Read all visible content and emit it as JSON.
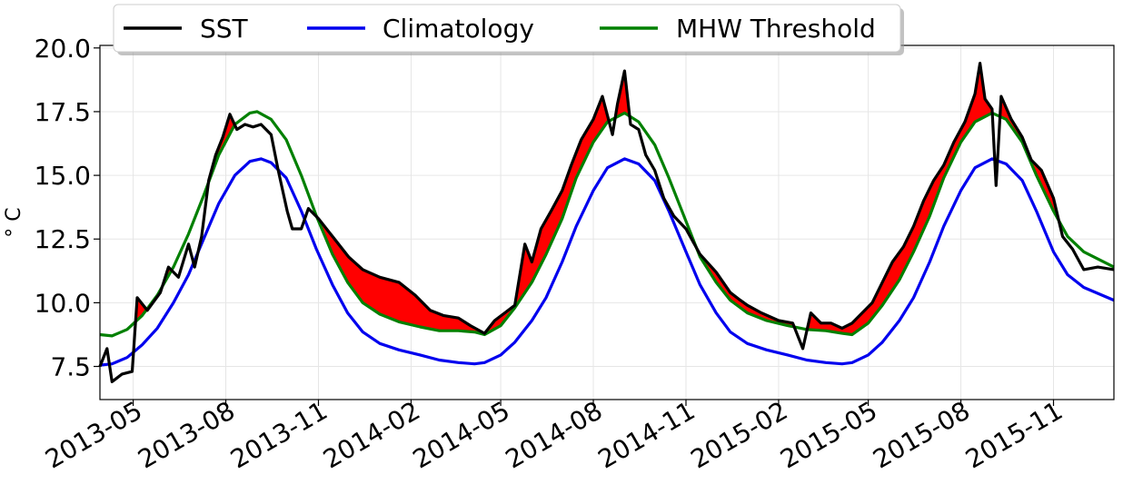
{
  "chart_data": {
    "type": "line",
    "ylabel": "$^\\circ$C",
    "ylabel_display": "° C",
    "ylim": [
      6.2,
      20.1
    ],
    "xlim": [
      "2013-03-29",
      "2015-12-31"
    ],
    "y_ticks": [
      "7.5",
      "10.0",
      "12.5",
      "15.0",
      "17.5",
      "20.0"
    ],
    "x_ticks": [
      "2013-05",
      "2013-08",
      "2013-11",
      "2014-02",
      "2014-05",
      "2014-08",
      "2014-11",
      "2015-02",
      "2015-05",
      "2015-08",
      "2015-11"
    ],
    "grid": true,
    "legend": {
      "placement": "top-center",
      "entries": [
        "SST",
        "Climatology",
        "MHW Threshold"
      ]
    },
    "series": [
      {
        "name": "SST",
        "color": "#000000",
        "points": [
          [
            "2013-03-29",
            7.5
          ],
          [
            "2013-04-05",
            8.2
          ],
          [
            "2013-04-10",
            6.9
          ],
          [
            "2013-04-20",
            7.2
          ],
          [
            "2013-04-30",
            7.3
          ],
          [
            "2013-05-05",
            10.2
          ],
          [
            "2013-05-15",
            9.7
          ],
          [
            "2013-05-28",
            10.4
          ],
          [
            "2013-06-05",
            11.4
          ],
          [
            "2013-06-15",
            11.0
          ],
          [
            "2013-06-25",
            12.3
          ],
          [
            "2013-07-01",
            11.4
          ],
          [
            "2013-07-08",
            12.6
          ],
          [
            "2013-07-15",
            14.8
          ],
          [
            "2013-07-22",
            15.8
          ],
          [
            "2013-07-29",
            16.5
          ],
          [
            "2013-08-05",
            17.4
          ],
          [
            "2013-08-12",
            16.8
          ],
          [
            "2013-08-20",
            17.0
          ],
          [
            "2013-08-28",
            16.9
          ],
          [
            "2013-09-05",
            17.0
          ],
          [
            "2013-09-15",
            16.6
          ],
          [
            "2013-09-22",
            15.2
          ],
          [
            "2013-10-01",
            13.6
          ],
          [
            "2013-10-06",
            12.9
          ],
          [
            "2013-10-15",
            12.9
          ],
          [
            "2013-10-22",
            13.7
          ],
          [
            "2013-11-01",
            13.3
          ],
          [
            "2013-11-15",
            12.6
          ],
          [
            "2013-12-01",
            11.8
          ],
          [
            "2013-12-15",
            11.3
          ],
          [
            "2014-01-01",
            11.0
          ],
          [
            "2014-01-20",
            10.8
          ],
          [
            "2014-02-05",
            10.3
          ],
          [
            "2014-02-20",
            9.7
          ],
          [
            "2014-03-05",
            9.5
          ],
          [
            "2014-03-20",
            9.4
          ],
          [
            "2014-04-01",
            9.1
          ],
          [
            "2014-04-15",
            8.8
          ],
          [
            "2014-04-25",
            9.3
          ],
          [
            "2014-05-05",
            9.6
          ],
          [
            "2014-05-15",
            9.9
          ],
          [
            "2014-05-25",
            12.3
          ],
          [
            "2014-06-01",
            11.6
          ],
          [
            "2014-06-10",
            12.9
          ],
          [
            "2014-06-20",
            13.6
          ],
          [
            "2014-07-01",
            14.4
          ],
          [
            "2014-07-10",
            15.4
          ],
          [
            "2014-07-20",
            16.4
          ],
          [
            "2014-08-01",
            17.2
          ],
          [
            "2014-08-10",
            18.1
          ],
          [
            "2014-08-20",
            16.6
          ],
          [
            "2014-08-25",
            17.8
          ],
          [
            "2014-09-01",
            19.1
          ],
          [
            "2014-09-07",
            17.0
          ],
          [
            "2014-09-15",
            16.8
          ],
          [
            "2014-09-22",
            15.8
          ],
          [
            "2014-10-01",
            15.2
          ],
          [
            "2014-10-10",
            14.1
          ],
          [
            "2014-10-20",
            13.4
          ],
          [
            "2014-11-01",
            12.9
          ],
          [
            "2014-11-15",
            11.9
          ],
          [
            "2014-12-01",
            11.2
          ],
          [
            "2014-12-15",
            10.4
          ],
          [
            "2014-12-25",
            10.1
          ],
          [
            "2015-01-01",
            9.9
          ],
          [
            "2015-01-15",
            9.6
          ],
          [
            "2015-02-01",
            9.3
          ],
          [
            "2015-02-15",
            9.2
          ],
          [
            "2015-02-25",
            8.2
          ],
          [
            "2015-03-05",
            9.6
          ],
          [
            "2015-03-15",
            9.2
          ],
          [
            "2015-03-25",
            9.2
          ],
          [
            "2015-04-05",
            9.0
          ],
          [
            "2015-04-15",
            9.2
          ],
          [
            "2015-04-25",
            9.6
          ],
          [
            "2015-05-05",
            10.0
          ],
          [
            "2015-05-15",
            10.8
          ],
          [
            "2015-05-25",
            11.6
          ],
          [
            "2015-06-05",
            12.2
          ],
          [
            "2015-06-15",
            13.0
          ],
          [
            "2015-06-25",
            14.0
          ],
          [
            "2015-07-05",
            14.8
          ],
          [
            "2015-07-15",
            15.4
          ],
          [
            "2015-07-25",
            16.3
          ],
          [
            "2015-08-05",
            17.1
          ],
          [
            "2015-08-15",
            18.2
          ],
          [
            "2015-08-20",
            19.4
          ],
          [
            "2015-08-25",
            18.0
          ],
          [
            "2015-09-01",
            17.6
          ],
          [
            "2015-09-05",
            14.6
          ],
          [
            "2015-09-10",
            18.1
          ],
          [
            "2015-09-20",
            17.2
          ],
          [
            "2015-10-01",
            16.5
          ],
          [
            "2015-10-10",
            15.6
          ],
          [
            "2015-10-20",
            15.2
          ],
          [
            "2015-11-01",
            14.1
          ],
          [
            "2015-11-10",
            12.6
          ],
          [
            "2015-11-20",
            12.1
          ],
          [
            "2015-12-01",
            11.3
          ],
          [
            "2015-12-15",
            11.4
          ],
          [
            "2015-12-31",
            11.3
          ]
        ]
      },
      {
        "name": "Climatology",
        "color": "#0000ee",
        "points": [
          [
            "2013-03-29",
            7.55
          ],
          [
            "2013-04-10",
            7.6
          ],
          [
            "2013-04-25",
            7.85
          ],
          [
            "2013-05-10",
            8.35
          ],
          [
            "2013-05-25",
            9.0
          ],
          [
            "2013-06-10",
            10.0
          ],
          [
            "2013-06-25",
            11.1
          ],
          [
            "2013-07-10",
            12.5
          ],
          [
            "2013-07-25",
            13.9
          ],
          [
            "2013-08-10",
            15.0
          ],
          [
            "2013-08-25",
            15.55
          ],
          [
            "2013-09-05",
            15.65
          ],
          [
            "2013-09-15",
            15.5
          ],
          [
            "2013-09-30",
            14.9
          ],
          [
            "2013-10-15",
            13.6
          ],
          [
            "2013-10-30",
            12.1
          ],
          [
            "2013-11-15",
            10.7
          ],
          [
            "2013-11-30",
            9.6
          ],
          [
            "2013-12-15",
            8.85
          ],
          [
            "2014-01-01",
            8.4
          ],
          [
            "2014-01-20",
            8.15
          ],
          [
            "2014-02-10",
            7.95
          ],
          [
            "2014-03-01",
            7.75
          ],
          [
            "2014-03-20",
            7.65
          ],
          [
            "2014-04-05",
            7.6
          ],
          [
            "2014-04-15",
            7.65
          ],
          [
            "2014-05-01",
            7.95
          ],
          [
            "2014-05-15",
            8.45
          ],
          [
            "2014-06-01",
            9.3
          ],
          [
            "2014-06-15",
            10.2
          ],
          [
            "2014-07-01",
            11.6
          ],
          [
            "2014-07-15",
            13.0
          ],
          [
            "2014-08-01",
            14.4
          ],
          [
            "2014-08-15",
            15.3
          ],
          [
            "2014-09-01",
            15.65
          ],
          [
            "2014-09-15",
            15.45
          ],
          [
            "2014-10-01",
            14.8
          ],
          [
            "2014-10-15",
            13.6
          ],
          [
            "2014-11-01",
            12.0
          ],
          [
            "2014-11-15",
            10.7
          ],
          [
            "2014-12-01",
            9.6
          ],
          [
            "2014-12-15",
            8.85
          ],
          [
            "2015-01-01",
            8.4
          ],
          [
            "2015-01-20",
            8.15
          ],
          [
            "2015-02-10",
            7.95
          ],
          [
            "2015-03-01",
            7.75
          ],
          [
            "2015-03-20",
            7.65
          ],
          [
            "2015-04-05",
            7.6
          ],
          [
            "2015-04-15",
            7.65
          ],
          [
            "2015-05-01",
            7.95
          ],
          [
            "2015-05-15",
            8.45
          ],
          [
            "2015-06-01",
            9.3
          ],
          [
            "2015-06-15",
            10.2
          ],
          [
            "2015-07-01",
            11.6
          ],
          [
            "2015-07-15",
            13.0
          ],
          [
            "2015-08-01",
            14.4
          ],
          [
            "2015-08-15",
            15.3
          ],
          [
            "2015-09-01",
            15.65
          ],
          [
            "2015-09-15",
            15.45
          ],
          [
            "2015-10-01",
            14.8
          ],
          [
            "2015-10-15",
            13.6
          ],
          [
            "2015-11-01",
            12.0
          ],
          [
            "2015-11-15",
            11.1
          ],
          [
            "2015-12-01",
            10.6
          ],
          [
            "2015-12-31",
            10.1
          ]
        ]
      },
      {
        "name": "MHW Threshold",
        "color": "#008000",
        "points": [
          [
            "2013-03-29",
            8.75
          ],
          [
            "2013-04-10",
            8.7
          ],
          [
            "2013-04-25",
            8.95
          ],
          [
            "2013-05-10",
            9.5
          ],
          [
            "2013-05-25",
            10.3
          ],
          [
            "2013-06-10",
            11.4
          ],
          [
            "2013-06-25",
            12.7
          ],
          [
            "2013-07-10",
            14.2
          ],
          [
            "2013-07-25",
            15.8
          ],
          [
            "2013-08-10",
            17.0
          ],
          [
            "2013-08-25",
            17.45
          ],
          [
            "2013-09-01",
            17.5
          ],
          [
            "2013-09-15",
            17.2
          ],
          [
            "2013-09-30",
            16.4
          ],
          [
            "2013-10-15",
            15.0
          ],
          [
            "2013-10-30",
            13.4
          ],
          [
            "2013-11-15",
            11.9
          ],
          [
            "2013-11-30",
            10.8
          ],
          [
            "2013-12-15",
            10.0
          ],
          [
            "2014-01-01",
            9.55
          ],
          [
            "2014-01-20",
            9.25
          ],
          [
            "2014-02-10",
            9.05
          ],
          [
            "2014-03-01",
            8.9
          ],
          [
            "2014-03-20",
            8.9
          ],
          [
            "2014-04-05",
            8.85
          ],
          [
            "2014-04-15",
            8.75
          ],
          [
            "2014-05-01",
            9.1
          ],
          [
            "2014-05-15",
            9.8
          ],
          [
            "2014-06-01",
            10.8
          ],
          [
            "2014-06-15",
            11.9
          ],
          [
            "2014-07-01",
            13.3
          ],
          [
            "2014-07-15",
            14.9
          ],
          [
            "2014-08-01",
            16.3
          ],
          [
            "2014-08-15",
            17.1
          ],
          [
            "2014-09-01",
            17.45
          ],
          [
            "2014-09-15",
            17.1
          ],
          [
            "2014-10-01",
            16.2
          ],
          [
            "2014-10-15",
            14.9
          ],
          [
            "2014-11-01",
            13.2
          ],
          [
            "2014-11-15",
            11.8
          ],
          [
            "2014-12-01",
            10.8
          ],
          [
            "2014-12-15",
            10.1
          ],
          [
            "2015-01-01",
            9.6
          ],
          [
            "2015-01-20",
            9.3
          ],
          [
            "2015-02-10",
            9.1
          ],
          [
            "2015-03-01",
            8.95
          ],
          [
            "2015-03-20",
            8.9
          ],
          [
            "2015-04-05",
            8.8
          ],
          [
            "2015-04-15",
            8.75
          ],
          [
            "2015-05-01",
            9.2
          ],
          [
            "2015-05-15",
            9.9
          ],
          [
            "2015-06-01",
            10.9
          ],
          [
            "2015-06-15",
            12.0
          ],
          [
            "2015-07-01",
            13.4
          ],
          [
            "2015-07-15",
            14.9
          ],
          [
            "2015-08-01",
            16.3
          ],
          [
            "2015-08-15",
            17.1
          ],
          [
            "2015-09-01",
            17.45
          ],
          [
            "2015-09-15",
            17.2
          ],
          [
            "2015-10-01",
            16.3
          ],
          [
            "2015-10-15",
            15.0
          ],
          [
            "2015-11-01",
            13.6
          ],
          [
            "2015-11-15",
            12.6
          ],
          [
            "2015-12-01",
            12.0
          ],
          [
            "2015-12-31",
            11.4
          ]
        ]
      }
    ],
    "fill_between": {
      "upper": "SST",
      "lower": "MHW Threshold",
      "where": "SST > MHW Threshold",
      "color": "#ff0000"
    }
  }
}
